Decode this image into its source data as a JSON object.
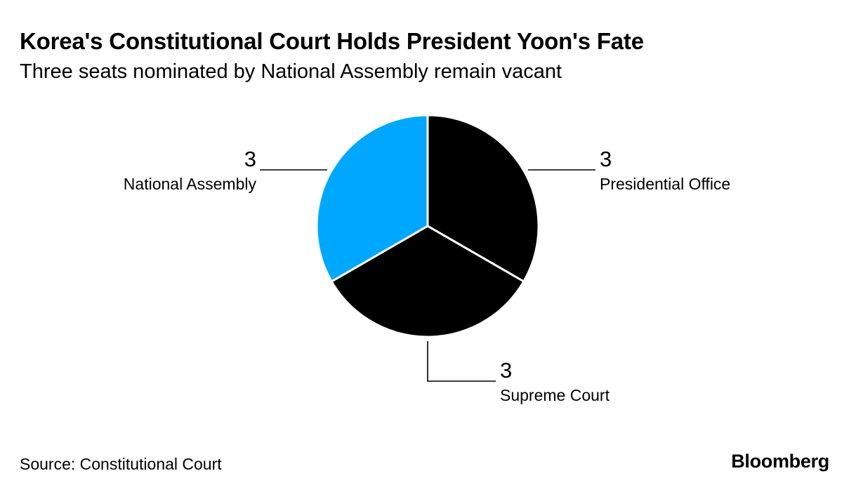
{
  "header": {
    "title": "Korea's Constitutional Court Holds President Yoon's Fate",
    "subtitle": "Three seats nominated by National Assembly remain vacant"
  },
  "footer": {
    "source": "Source: Constitutional Court",
    "brand": "Bloomberg"
  },
  "chart_data": {
    "type": "pie",
    "title": "Korea's Constitutional Court Holds President Yoon's Fate",
    "subtitle": "Three seats nominated by National Assembly remain vacant",
    "slices": [
      {
        "label": "Presidential Office",
        "value": 3,
        "color": "#000000"
      },
      {
        "label": "Supreme Court",
        "value": 3,
        "color": "#000000"
      },
      {
        "label": "National Assembly",
        "value": 3,
        "color": "#00a7ff"
      }
    ]
  }
}
